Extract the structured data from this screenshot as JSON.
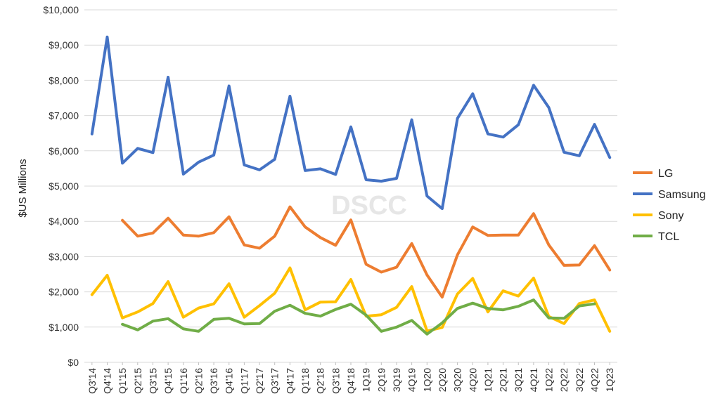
{
  "chart_data": {
    "type": "line",
    "title": "",
    "ylabel": "$US Millions",
    "xlabel": "",
    "ylim": [
      0,
      10000
    ],
    "yticks": [
      0,
      1000,
      2000,
      3000,
      4000,
      5000,
      6000,
      7000,
      8000,
      9000,
      10000
    ],
    "ytick_labels": [
      "$0",
      "$1,000",
      "$2,000",
      "$3,000",
      "$4,000",
      "$5,000",
      "$6,000",
      "$7,000",
      "$8,000",
      "$9,000",
      "$10,000"
    ],
    "grid": true,
    "legend_position": "right",
    "watermark": "DSCC",
    "categories": [
      "Q3'14",
      "Q4'14",
      "Q1'15",
      "Q2'15",
      "Q3'15",
      "Q4'15",
      "Q1'16",
      "Q2'16",
      "Q3'16",
      "Q4'16",
      "Q1'17",
      "Q2'17",
      "Q3'17",
      "Q4'17",
      "Q1'18",
      "Q2'18",
      "Q3'18",
      "Q4'18",
      "1Q19",
      "2Q19",
      "3Q19",
      "4Q19",
      "1Q20",
      "2Q20",
      "3Q20",
      "4Q20",
      "1Q21",
      "2Q21",
      "3Q21",
      "4Q21",
      "1Q22",
      "2Q22",
      "3Q22",
      "4Q22",
      "1Q23"
    ],
    "tick_labels": [
      "Q3'14",
      "Q4'14",
      "Q1'15",
      "Q2'15",
      "Q3'15",
      "Q4'15",
      "Q1'16",
      "Q2'16",
      "Q3'16",
      "Q4'16",
      "Q1'17",
      "Q2'17",
      "Q3'17",
      "Q4'17",
      "Q1'18",
      "Q2'18",
      "Q3'18",
      "Q4'18",
      "1Q19",
      "2Q19",
      "3Q19",
      "4Q19",
      "1Q20",
      "2Q20",
      "3Q20",
      "4Q20",
      "1Q21",
      "2Q21",
      "3Q21",
      "4Q21",
      "1Q22",
      "2Q22",
      "3Q22",
      "4Q22",
      "1Q23"
    ],
    "series": [
      {
        "name": "Samsung",
        "color": "#4472C4",
        "values": [
          6480,
          9230,
          5650,
          6070,
          5950,
          8090,
          5340,
          5680,
          5880,
          7840,
          5600,
          5460,
          5760,
          7550,
          5440,
          5490,
          5330,
          6680,
          5180,
          5140,
          5220,
          6880,
          4720,
          4360,
          6920,
          7620,
          6480,
          6390,
          6740,
          7860,
          7230,
          5960,
          5860,
          6750,
          5810
        ]
      },
      {
        "name": "LG",
        "color": "#ED7D31",
        "values": [
          null,
          null,
          4030,
          3580,
          3670,
          4090,
          3610,
          3580,
          3680,
          4130,
          3330,
          3240,
          3580,
          4410,
          3840,
          3540,
          3320,
          4040,
          2780,
          2560,
          2700,
          3370,
          2480,
          1850,
          3050,
          3840,
          3600,
          3610,
          3610,
          4220,
          3330,
          2750,
          2760,
          3310,
          2620
        ]
      },
      {
        "name": "Sony",
        "color": "#FFC000",
        "values": [
          1920,
          2470,
          1260,
          1430,
          1670,
          2290,
          1280,
          1540,
          1660,
          2230,
          1280,
          1610,
          1960,
          2680,
          1490,
          1710,
          1720,
          2350,
          1310,
          1350,
          1560,
          2150,
          890,
          990,
          1940,
          2380,
          1430,
          2030,
          1880,
          2390,
          1300,
          1100,
          1670,
          1770,
          880
        ]
      },
      {
        "name": "TCL",
        "color": "#70AD47",
        "values": [
          null,
          null,
          1080,
          920,
          1170,
          1240,
          950,
          880,
          1220,
          1250,
          1090,
          1100,
          1450,
          1620,
          1390,
          1310,
          1500,
          1650,
          1340,
          880,
          1000,
          1190,
          800,
          1120,
          1530,
          1680,
          1530,
          1490,
          1590,
          1770,
          1260,
          1250,
          1600,
          1660,
          null
        ]
      }
    ],
    "legend_order": [
      "LG",
      "Samsung",
      "Sony",
      "TCL"
    ]
  }
}
